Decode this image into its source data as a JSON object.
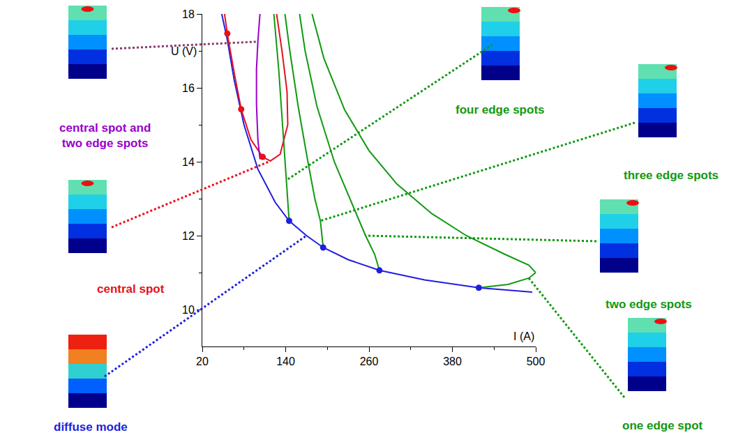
{
  "chart_data": {
    "type": "line",
    "xlabel": "I (A)",
    "ylabel": "U (V)",
    "xlim": [
      20,
      500
    ],
    "ylim": [
      9,
      18
    ],
    "xticks": [
      20,
      140,
      260,
      380,
      500
    ],
    "yticks": [
      10,
      12,
      14,
      16,
      18
    ],
    "grid": false,
    "series": [
      {
        "label": "diffuse mode",
        "color": "#1f1fe0",
        "x": [
          48,
          56,
          66,
          80,
          100,
          125,
          145,
          170,
          194,
          230,
          275,
          340,
          418,
          495
        ],
        "values": [
          18,
          17.3,
          16.2,
          15.0,
          13.8,
          12.9,
          12.4,
          12.0,
          11.68,
          11.35,
          11.06,
          10.8,
          10.59,
          10.47
        ]
      },
      {
        "label": "central spot",
        "color": "#e8101c",
        "x": [
          52,
          56,
          66,
          76,
          90,
          107,
          118,
          132,
          143,
          142,
          135,
          127
        ],
        "values": [
          18,
          17.47,
          16.4,
          15.42,
          14.6,
          14.13,
          14.02,
          14.2,
          15.0,
          15.9,
          16.96,
          18
        ]
      },
      {
        "label": "central spot and two edge spots",
        "color": "#9900cc",
        "x": [
          103,
          100,
          98,
          98,
          100,
          103
        ],
        "values": [
          14.07,
          14.6,
          15.55,
          16.5,
          17.25,
          18
        ]
      },
      {
        "label": "four edge spots",
        "color": "#119911",
        "x": [
          145,
          141,
          136,
          130,
          123
        ],
        "values": [
          12.4,
          13.5,
          15.0,
          16.5,
          18
        ]
      },
      {
        "label": "three edge spots",
        "color": "#119911",
        "x": [
          194,
          190,
          182,
          172,
          158,
          146,
          139
        ],
        "values": [
          11.68,
          12.4,
          13.0,
          14.0,
          15.5,
          17.0,
          18
        ]
      },
      {
        "label": "two edge spots",
        "color": "#119911",
        "x": [
          275,
          268,
          255,
          235,
          210,
          185,
          168,
          160
        ],
        "values": [
          11.06,
          11.5,
          12.0,
          12.9,
          14.0,
          15.5,
          17.0,
          18
        ]
      },
      {
        "label": "one edge spot",
        "color": "#119911",
        "x": [
          418,
          460,
          490,
          500,
          490,
          455,
          400,
          350,
          300,
          260,
          225,
          195,
          178
        ],
        "values": [
          10.59,
          10.68,
          10.85,
          11.0,
          11.2,
          11.5,
          12.0,
          12.6,
          13.4,
          14.3,
          15.4,
          16.8,
          18
        ]
      },
      {
        "type": "scatter",
        "color": "#1f1fe0",
        "x": [
          145,
          194,
          275,
          418
        ],
        "values": [
          12.4,
          11.68,
          11.06,
          10.59
        ]
      },
      {
        "type": "scatter",
        "color": "#e8101c",
        "x": [
          56,
          76,
          107
        ],
        "values": [
          17.47,
          15.42,
          14.13
        ]
      }
    ]
  }
}
